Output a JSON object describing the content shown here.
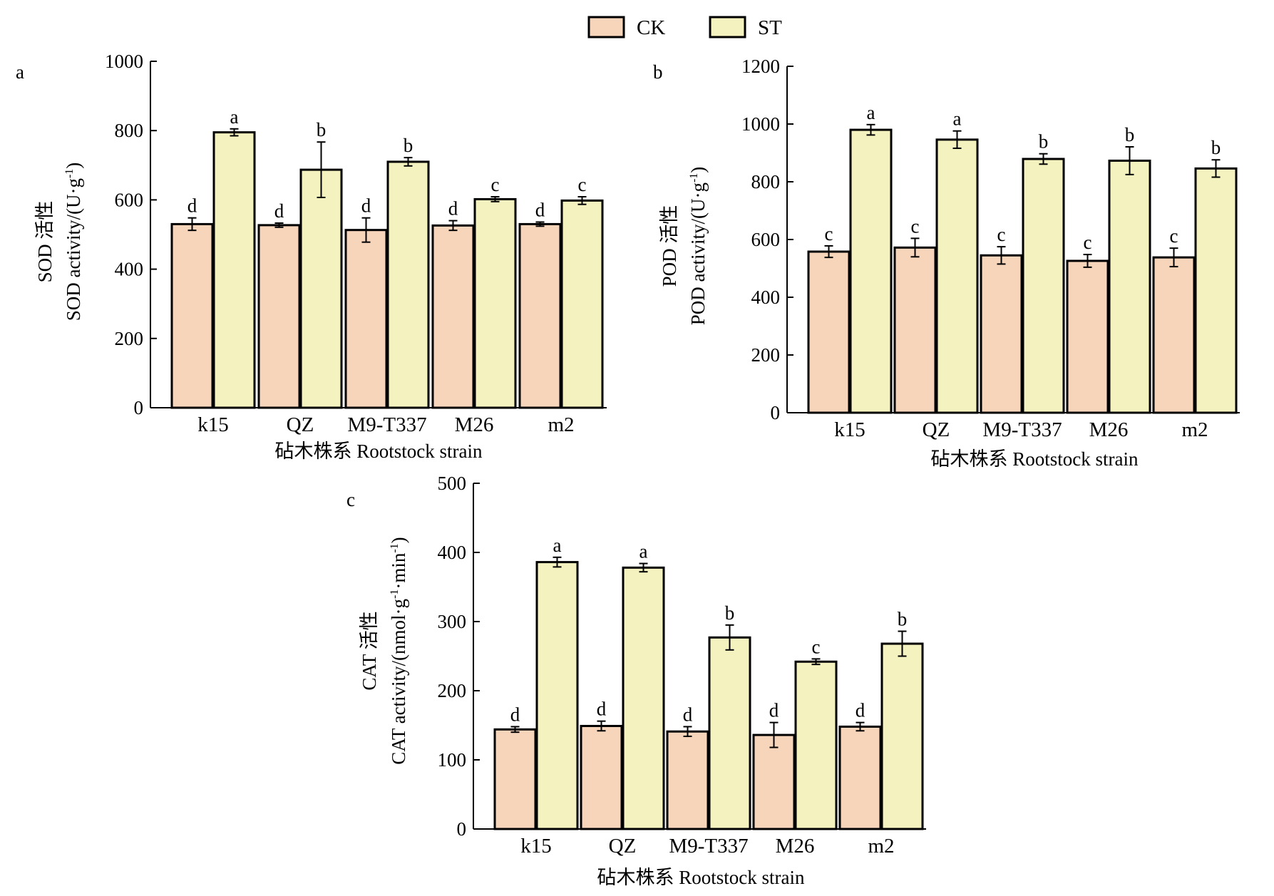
{
  "legend": {
    "items": [
      {
        "label": "CK",
        "color": "#f7d5bb"
      },
      {
        "label": "ST",
        "color": "#f4f2be"
      }
    ]
  },
  "chart_data": [
    {
      "type": "bar",
      "panel_label": "a",
      "ylabel_cn": "SOD 活性",
      "ylabel_en": "SOD activity/(U·g",
      "ylabel_sup": "-1",
      "ylabel_close": ")",
      "xlabel": "砧木株系 Rootstock strain",
      "ylim": [
        0,
        1000
      ],
      "yticks": [
        0,
        200,
        400,
        600,
        800,
        1000
      ],
      "categories": [
        "k15",
        "QZ",
        "M9-T337",
        "M26",
        "m2"
      ],
      "series": [
        {
          "name": "CK",
          "color": "#f7d5bb",
          "values": [
            530,
            527,
            513,
            526,
            530
          ],
          "errors": [
            18,
            6,
            35,
            14,
            6
          ],
          "letters": [
            "d",
            "d",
            "d",
            "d",
            "d"
          ]
        },
        {
          "name": "ST",
          "color": "#f4f2be",
          "values": [
            795,
            687,
            710,
            602,
            598
          ],
          "errors": [
            10,
            80,
            12,
            7,
            11
          ],
          "letters": [
            "a",
            "b",
            "b",
            "c",
            "c"
          ]
        }
      ]
    },
    {
      "type": "bar",
      "panel_label": "b",
      "ylabel_cn": "POD 活性",
      "ylabel_en": "POD activity/(U·g",
      "ylabel_sup": "-1",
      "ylabel_close": ")",
      "xlabel": "砧木株系 Rootstock strain",
      "ylim": [
        0,
        1200
      ],
      "yticks": [
        0,
        200,
        400,
        600,
        800,
        1000,
        1200
      ],
      "categories": [
        "k15",
        "QZ",
        "M9-T337",
        "M26",
        "m2"
      ],
      "series": [
        {
          "name": "CK",
          "color": "#f7d5bb",
          "values": [
            558,
            572,
            545,
            526,
            538
          ],
          "errors": [
            20,
            32,
            30,
            22,
            32
          ],
          "letters": [
            "c",
            "c",
            "c",
            "c",
            "c"
          ]
        },
        {
          "name": "ST",
          "color": "#f4f2be",
          "values": [
            980,
            946,
            879,
            873,
            846
          ],
          "errors": [
            18,
            30,
            18,
            48,
            30
          ],
          "letters": [
            "a",
            "a",
            "b",
            "b",
            "b"
          ]
        }
      ]
    },
    {
      "type": "bar",
      "panel_label": "c",
      "ylabel_cn": "CAT 活性",
      "ylabel_en": "CAT activity/(nmol·g",
      "ylabel_sup": "-1",
      "ylabel_close": "·min",
      "ylabel_sup2": "-1",
      "ylabel_close2": ")",
      "xlabel": "砧木株系 Rootstock strain",
      "ylim": [
        0,
        500
      ],
      "yticks": [
        0,
        100,
        200,
        300,
        400,
        500
      ],
      "categories": [
        "k15",
        "QZ",
        "M9-T337",
        "M26",
        "m2"
      ],
      "series": [
        {
          "name": "CK",
          "color": "#f7d5bb",
          "values": [
            144,
            149,
            141,
            136,
            148
          ],
          "errors": [
            4,
            7,
            7,
            18,
            6
          ],
          "letters": [
            "d",
            "d",
            "d",
            "d",
            "d"
          ]
        },
        {
          "name": "ST",
          "color": "#f4f2be",
          "values": [
            386,
            378,
            277,
            242,
            268
          ],
          "errors": [
            7,
            6,
            18,
            4,
            18
          ],
          "letters": [
            "a",
            "a",
            "b",
            "c",
            "b"
          ]
        }
      ]
    }
  ]
}
